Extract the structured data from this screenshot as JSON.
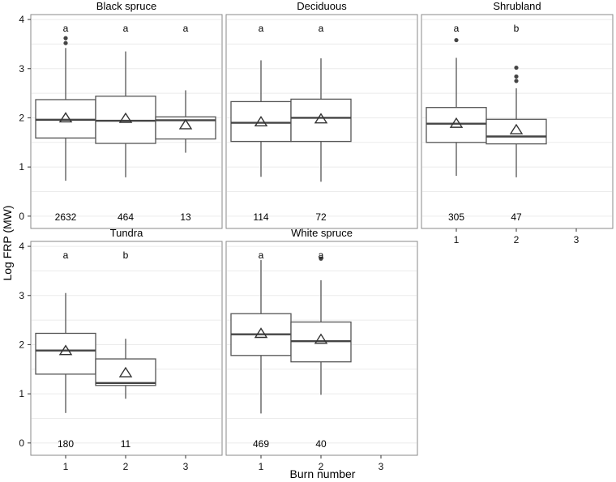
{
  "chart_data": {
    "type": "box",
    "xlabel": "Burn number",
    "ylabel": "Log FRP (MW)",
    "ylim": [
      -0.25,
      4.1
    ],
    "yticks": [
      0,
      1,
      2,
      3,
      4
    ],
    "xticks": [
      "1",
      "2",
      "3"
    ],
    "grid": "horizontal major and minor",
    "panels": [
      {
        "title": "Black spruce",
        "groups": [
          {
            "x": "1",
            "letter": "a",
            "n": "2632",
            "whisker_low": 0.72,
            "q1": 1.59,
            "median": 1.96,
            "q3": 2.37,
            "whisker_high": 3.42,
            "mean": 2.0,
            "outliers": [
              3.52,
              3.62
            ]
          },
          {
            "x": "2",
            "letter": "a",
            "n": "464",
            "whisker_low": 0.79,
            "q1": 1.48,
            "median": 1.94,
            "q3": 2.44,
            "whisker_high": 3.35,
            "mean": 1.99,
            "outliers": []
          },
          {
            "x": "3",
            "letter": "a",
            "n": "13",
            "whisker_low": 1.29,
            "q1": 1.57,
            "median": 1.95,
            "q3": 2.02,
            "whisker_high": 2.56,
            "mean": 1.86,
            "outliers": []
          }
        ]
      },
      {
        "title": "Deciduous",
        "groups": [
          {
            "x": "1",
            "letter": "a",
            "n": "114",
            "whisker_low": 0.8,
            "q1": 1.52,
            "median": 1.9,
            "q3": 2.33,
            "whisker_high": 3.17,
            "mean": 1.92,
            "outliers": []
          },
          {
            "x": "2",
            "letter": "a",
            "n": "72",
            "whisker_low": 0.7,
            "q1": 1.52,
            "median": 2.0,
            "q3": 2.38,
            "whisker_high": 3.21,
            "mean": 1.98,
            "outliers": []
          }
        ]
      },
      {
        "title": "Shrubland",
        "groups": [
          {
            "x": "1",
            "letter": "a",
            "n": "305",
            "whisker_low": 0.82,
            "q1": 1.5,
            "median": 1.88,
            "q3": 2.21,
            "whisker_high": 3.22,
            "mean": 1.89,
            "outliers": [
              3.58
            ]
          },
          {
            "x": "2",
            "letter": "b",
            "n": "47",
            "whisker_low": 0.79,
            "q1": 1.47,
            "median": 1.62,
            "q3": 1.97,
            "whisker_high": 2.6,
            "mean": 1.76,
            "outliers": [
              2.75,
              2.84,
              3.02
            ]
          }
        ]
      },
      {
        "title": "Tundra",
        "groups": [
          {
            "x": "1",
            "letter": "a",
            "n": "180",
            "whisker_low": 0.61,
            "q1": 1.4,
            "median": 1.88,
            "q3": 2.23,
            "whisker_high": 3.05,
            "mean": 1.88,
            "outliers": []
          },
          {
            "x": "2",
            "letter": "b",
            "n": "11",
            "whisker_low": 0.9,
            "q1": 1.17,
            "median": 1.22,
            "q3": 1.71,
            "whisker_high": 2.12,
            "mean": 1.43,
            "outliers": []
          }
        ]
      },
      {
        "title": "White spruce",
        "groups": [
          {
            "x": "1",
            "letter": "a",
            "n": "469",
            "whisker_low": 0.6,
            "q1": 1.78,
            "median": 2.21,
            "q3": 2.63,
            "whisker_high": 3.72,
            "mean": 2.23,
            "outliers": []
          },
          {
            "x": "2",
            "letter": "a",
            "n": "40",
            "whisker_low": 0.98,
            "q1": 1.65,
            "median": 2.07,
            "q3": 2.46,
            "whisker_high": 3.31,
            "mean": 2.11,
            "outliers": [
              3.75
            ]
          }
        ]
      }
    ]
  }
}
